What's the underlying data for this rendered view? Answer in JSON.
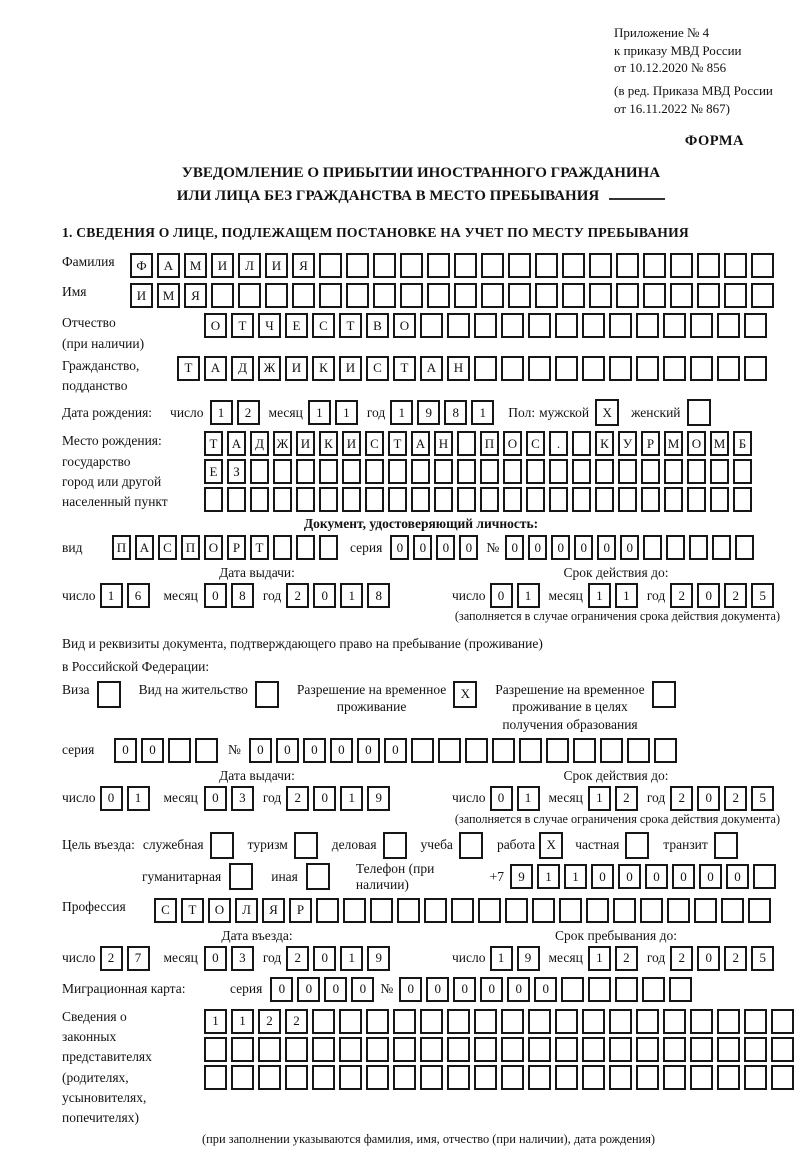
{
  "appendix": {
    "line1": "Приложение № 4",
    "line2": "к приказу МВД России",
    "line3": "от 10.12.2020 № 856",
    "line4": "(в ред. Приказа МВД России",
    "line5": "от 16.11.2022 № 867)",
    "form_label": "ФОРМА"
  },
  "title": {
    "line1": "УВЕДОМЛЕНИЕ О ПРИБЫТИИ ИНОСТРАННОГО ГРАЖДАНИНА",
    "line2": "ИЛИ ЛИЦА БЕЗ ГРАЖДАНСТВА В МЕСТО ПРЕБЫВАНИЯ"
  },
  "section1_heading": "1. СВЕДЕНИЯ О ЛИЦЕ, ПОДЛЕЖАЩЕМ ПОСТАНОВКЕ НА УЧЕТ ПО МЕСТУ ПРЕБЫВАНИЯ",
  "labels": {
    "surname": "Фамилия",
    "firstname": "Имя",
    "patronymic": "Отчество",
    "patronymic_note": "(при наличии)",
    "citizenship1": "Гражданство,",
    "citizenship2": "подданство",
    "birthdate": "Дата рождения:",
    "day": "число",
    "month": "месяц",
    "year": "год",
    "sex": "Пол:",
    "male": "мужской",
    "female": "женский",
    "birthplace1": "Место рождения:",
    "birthplace2": "государство",
    "birthplace3": "город или другой",
    "birthplace4": "населенный пункт",
    "identity_doc": "Документ, удостоверяющий личность:",
    "doc_type": "вид",
    "series": "серия",
    "number": "№",
    "issue_date": "Дата выдачи:",
    "valid_until": "Срок действия до:",
    "valid_note": "(заполняется в случае ограничения срока действия документа)",
    "residence_doc1": "Вид и реквизиты документа, подтверждающего право на пребывание (проживание)",
    "residence_doc2": "в Российской Федерации:",
    "visa": "Виза",
    "residence_permit": "Вид на жительство",
    "temp_permit1": "Разрешение на временное",
    "temp_permit2": "проживание",
    "edu_permit1": "Разрешение на временное",
    "edu_permit2": "проживание в целях",
    "edu_permit3": "получения образования",
    "purpose": "Цель въезда:",
    "purpose_official": "служебная",
    "purpose_tourism": "туризм",
    "purpose_business": "деловая",
    "purpose_study": "учеба",
    "purpose_work": "работа",
    "purpose_private": "частная",
    "purpose_transit": "транзит",
    "purpose_humanitarian": "гуманитарная",
    "purpose_other": "иная",
    "phone": "Телефон (при наличии)",
    "phone_prefix": "+7",
    "profession": "Профессия",
    "entry_date": "Дата въезда:",
    "stay_until": "Срок пребывания до:",
    "migration_card": "Миграционная карта:",
    "representatives": [
      "Сведения о",
      "законных",
      "представителях",
      "(родителях,",
      "усыновителях,",
      "попечителях)"
    ],
    "representatives_note": "(при заполнении указываются фамилия, имя, отчество (при наличии), дата рождения)"
  },
  "fields": {
    "surname": {
      "value": "ФАМИЛИЯ",
      "length": 24
    },
    "firstname": {
      "value": "ИМЯ",
      "length": 24
    },
    "patronymic": {
      "value": "ОТЧЕСТВО",
      "length": 21
    },
    "citizenship": {
      "value": "ТАДЖИКИСТАН",
      "length": 22
    },
    "birth_day": {
      "value": "12",
      "length": 2
    },
    "birth_month": {
      "value": "11",
      "length": 2
    },
    "birth_year": {
      "value": "1981",
      "length": 4
    },
    "sex_male": {
      "value": "X",
      "length": 1
    },
    "sex_female": {
      "value": "",
      "length": 1
    },
    "birthplace_row1": {
      "value": "ТАДЖИКИСТАН ПОС. КУРМОМБ",
      "length": 24
    },
    "birthplace_row2": {
      "value": "ЕЗ",
      "length": 24
    },
    "birthplace_row3": {
      "value": "",
      "length": 24
    },
    "doc_type": {
      "value": "ПАСПОРТ",
      "length": 10
    },
    "doc_series": {
      "value": "0000",
      "length": 4
    },
    "doc_number": {
      "value": "000000",
      "length": 11
    },
    "doc_issue_day": {
      "value": "16",
      "length": 2
    },
    "doc_issue_month": {
      "value": "08",
      "length": 2
    },
    "doc_issue_year": {
      "value": "2018",
      "length": 4
    },
    "doc_valid_day": {
      "value": "01",
      "length": 2
    },
    "doc_valid_month": {
      "value": "11",
      "length": 2
    },
    "doc_valid_year": {
      "value": "2025",
      "length": 4
    },
    "visa_chk": {
      "value": "",
      "length": 1
    },
    "residence_permit_chk": {
      "value": "",
      "length": 1
    },
    "temp_permit_chk": {
      "value": "X",
      "length": 1
    },
    "edu_permit_chk": {
      "value": "",
      "length": 1
    },
    "res_series": {
      "value": "00",
      "length": 4
    },
    "res_number": {
      "value": "000000",
      "length": 16
    },
    "res_issue_day": {
      "value": "01",
      "length": 2
    },
    "res_issue_month": {
      "value": "03",
      "length": 2
    },
    "res_issue_year": {
      "value": "2019",
      "length": 4
    },
    "res_valid_day": {
      "value": "01",
      "length": 2
    },
    "res_valid_month": {
      "value": "12",
      "length": 2
    },
    "res_valid_year": {
      "value": "2025",
      "length": 4
    },
    "purpose_official_chk": {
      "value": "",
      "length": 1
    },
    "purpose_tourism_chk": {
      "value": "",
      "length": 1
    },
    "purpose_business_chk": {
      "value": "",
      "length": 1
    },
    "purpose_study_chk": {
      "value": "",
      "length": 1
    },
    "purpose_work_chk": {
      "value": "X",
      "length": 1
    },
    "purpose_private_chk": {
      "value": "",
      "length": 1
    },
    "purpose_transit_chk": {
      "value": "",
      "length": 1
    },
    "purpose_humanitarian_chk": {
      "value": "",
      "length": 1
    },
    "purpose_other_chk": {
      "value": "",
      "length": 1
    },
    "phone": {
      "value": "911000000",
      "length": 10
    },
    "profession": {
      "value": "СТОЛЯР",
      "length": 23
    },
    "entry_day": {
      "value": "27",
      "length": 2
    },
    "entry_month": {
      "value": "03",
      "length": 2
    },
    "entry_year": {
      "value": "2019",
      "length": 4
    },
    "stay_day": {
      "value": "19",
      "length": 2
    },
    "stay_month": {
      "value": "12",
      "length": 2
    },
    "stay_year": {
      "value": "2025",
      "length": 4
    },
    "mk_series": {
      "value": "0000",
      "length": 4
    },
    "mk_number": {
      "value": "000000",
      "length": 11
    },
    "rep_row1": {
      "value": "1122",
      "length": 22
    },
    "rep_row2": {
      "value": "",
      "length": 22
    },
    "rep_row3": {
      "value": "",
      "length": 22
    }
  }
}
